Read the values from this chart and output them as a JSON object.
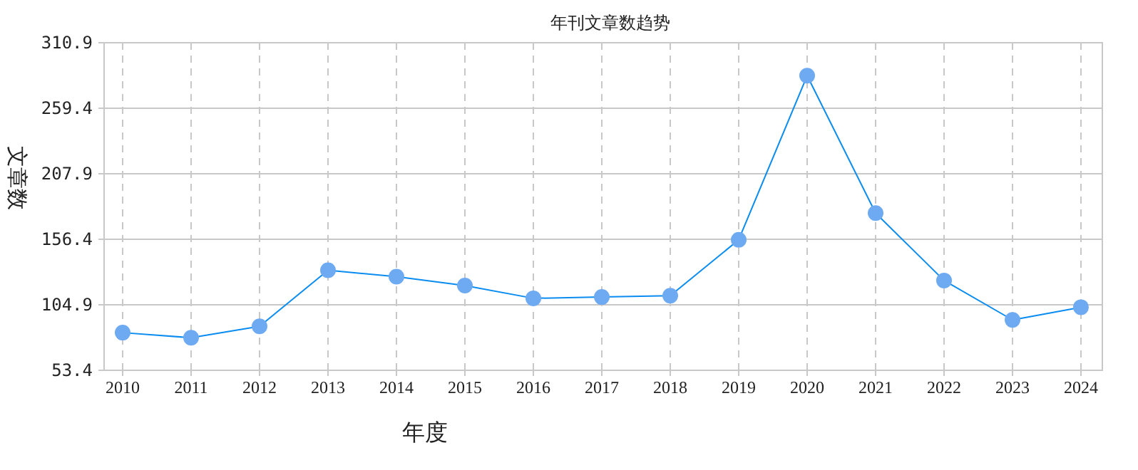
{
  "chart_data": {
    "type": "line",
    "title": "年刊文章数趋势",
    "xlabel": "年度",
    "ylabel": "文章数",
    "categories": [
      "2010",
      "2011",
      "2012",
      "2013",
      "2014",
      "2015",
      "2016",
      "2017",
      "2018",
      "2019",
      "2020",
      "2021",
      "2022",
      "2023",
      "2024"
    ],
    "series": [
      {
        "color": "#0a8cf0",
        "values": [
          83,
          79,
          88,
          132,
          127,
          120,
          110,
          111,
          112,
          156,
          285,
          177,
          124,
          93,
          103
        ]
      }
    ],
    "ylim": [
      53.4,
      310.9
    ],
    "yticks": [
      53.4,
      104.9,
      156.4,
      207.9,
      259.4,
      310.9
    ],
    "grid": true,
    "marker": "circle",
    "line_style": "solid"
  }
}
